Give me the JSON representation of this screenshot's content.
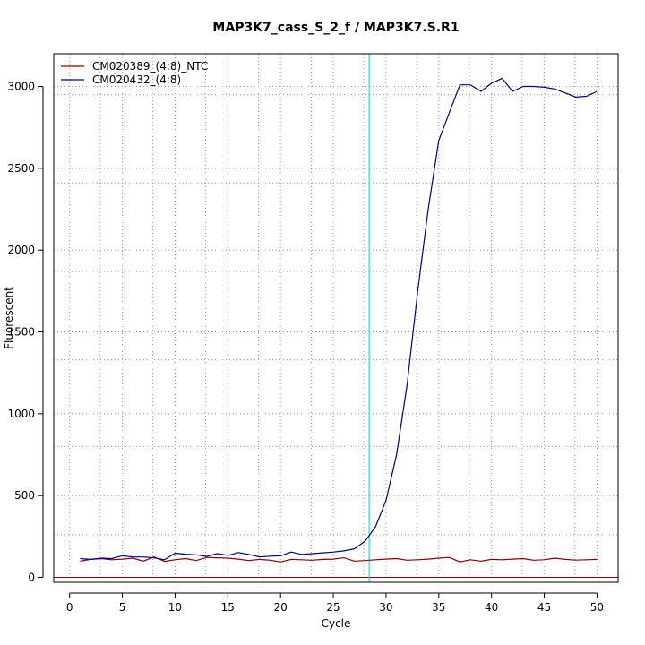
{
  "chart_data": {
    "type": "line",
    "title": "MAP3K7_cass_S_2_f / MAP3K7.S.R1",
    "xlabel": "Cycle",
    "ylabel": "Fluorescent",
    "xlim": [
      -1.5,
      52
    ],
    "ylim": [
      -30,
      3200
    ],
    "x_ticks": [
      0,
      5,
      10,
      15,
      20,
      25,
      30,
      35,
      40,
      45,
      50
    ],
    "y_ticks": [
      0,
      500,
      1000,
      1500,
      2000,
      2500,
      3000
    ],
    "x_grid_minor": [
      2.9,
      7.9,
      12.9,
      17.9,
      22.9,
      27.9,
      32.9,
      37.9,
      42.9,
      47.9
    ],
    "y_grid_minor": [
      -270,
      260,
      800,
      1330,
      1870,
      2410,
      2950
    ],
    "grid": true,
    "legend_position": "top-left",
    "threshold_line": {
      "y": 0,
      "color": "#8b0000"
    },
    "vertical_marker": {
      "x": 28.4,
      "color": "#00ced1"
    },
    "x": [
      1,
      2,
      3,
      4,
      5,
      6,
      7,
      8,
      9,
      10,
      11,
      12,
      13,
      14,
      15,
      16,
      17,
      18,
      19,
      20,
      21,
      22,
      23,
      24,
      25,
      26,
      27,
      28,
      29,
      30,
      31,
      32,
      33,
      34,
      35,
      36,
      37,
      38,
      39,
      40,
      41,
      42,
      43,
      44,
      45,
      46,
      47,
      48,
      49,
      50
    ],
    "series": [
      {
        "name": "CM020389_(4:8)_NTC",
        "color": "#8b0000",
        "values": [
          100,
          110,
          115,
          108,
          112,
          118,
          100,
          125,
          98,
          108,
          115,
          103,
          122,
          120,
          118,
          112,
          103,
          110,
          105,
          95,
          110,
          108,
          105,
          110,
          112,
          120,
          100,
          103,
          108,
          112,
          115,
          105,
          108,
          112,
          118,
          122,
          95,
          108,
          100,
          110,
          108,
          112,
          115,
          105,
          108,
          118,
          110,
          106,
          108,
          110
        ]
      },
      {
        "name": "CM020432_(4:8)",
        "color": "#00008b",
        "values": [
          115,
          110,
          118,
          115,
          132,
          125,
          125,
          120,
          108,
          148,
          142,
          138,
          128,
          145,
          135,
          152,
          140,
          125,
          130,
          132,
          155,
          140,
          145,
          150,
          155,
          162,
          175,
          220,
          310,
          470,
          750,
          1180,
          1750,
          2250,
          2670,
          2840,
          3010,
          3010,
          2970,
          3020,
          3050,
          2970,
          3000,
          3000,
          2995,
          2985,
          2960,
          2935,
          2940,
          2970
        ]
      }
    ]
  }
}
